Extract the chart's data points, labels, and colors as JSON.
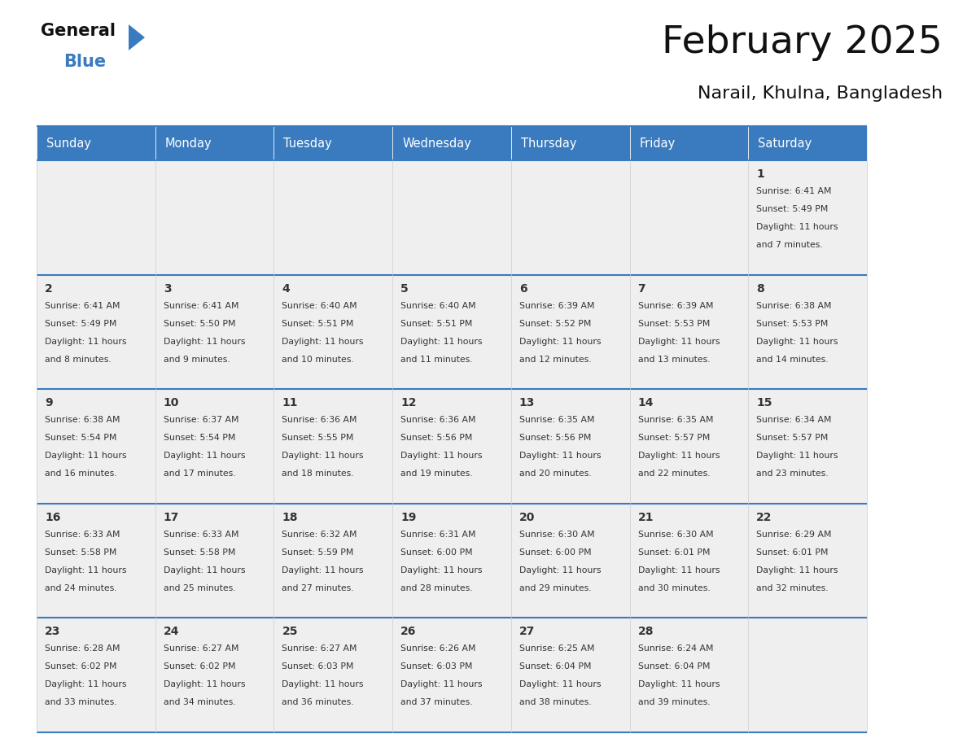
{
  "title": "February 2025",
  "subtitle": "Narail, Khulna, Bangladesh",
  "header_color": "#3a7bbf",
  "header_text_color": "#ffffff",
  "cell_bg_color": "#efefef",
  "border_color": "#3a7bbf",
  "text_color": "#333333",
  "day_names": [
    "Sunday",
    "Monday",
    "Tuesday",
    "Wednesday",
    "Thursday",
    "Friday",
    "Saturday"
  ],
  "days": [
    {
      "day": 1,
      "col": 6,
      "row": 0,
      "sunrise": "6:41 AM",
      "sunset": "5:49 PM",
      "daylight_hours": 11,
      "daylight_minutes": 7
    },
    {
      "day": 2,
      "col": 0,
      "row": 1,
      "sunrise": "6:41 AM",
      "sunset": "5:49 PM",
      "daylight_hours": 11,
      "daylight_minutes": 8
    },
    {
      "day": 3,
      "col": 1,
      "row": 1,
      "sunrise": "6:41 AM",
      "sunset": "5:50 PM",
      "daylight_hours": 11,
      "daylight_minutes": 9
    },
    {
      "day": 4,
      "col": 2,
      "row": 1,
      "sunrise": "6:40 AM",
      "sunset": "5:51 PM",
      "daylight_hours": 11,
      "daylight_minutes": 10
    },
    {
      "day": 5,
      "col": 3,
      "row": 1,
      "sunrise": "6:40 AM",
      "sunset": "5:51 PM",
      "daylight_hours": 11,
      "daylight_minutes": 11
    },
    {
      "day": 6,
      "col": 4,
      "row": 1,
      "sunrise": "6:39 AM",
      "sunset": "5:52 PM",
      "daylight_hours": 11,
      "daylight_minutes": 12
    },
    {
      "day": 7,
      "col": 5,
      "row": 1,
      "sunrise": "6:39 AM",
      "sunset": "5:53 PM",
      "daylight_hours": 11,
      "daylight_minutes": 13
    },
    {
      "day": 8,
      "col": 6,
      "row": 1,
      "sunrise": "6:38 AM",
      "sunset": "5:53 PM",
      "daylight_hours": 11,
      "daylight_minutes": 14
    },
    {
      "day": 9,
      "col": 0,
      "row": 2,
      "sunrise": "6:38 AM",
      "sunset": "5:54 PM",
      "daylight_hours": 11,
      "daylight_minutes": 16
    },
    {
      "day": 10,
      "col": 1,
      "row": 2,
      "sunrise": "6:37 AM",
      "sunset": "5:54 PM",
      "daylight_hours": 11,
      "daylight_minutes": 17
    },
    {
      "day": 11,
      "col": 2,
      "row": 2,
      "sunrise": "6:36 AM",
      "sunset": "5:55 PM",
      "daylight_hours": 11,
      "daylight_minutes": 18
    },
    {
      "day": 12,
      "col": 3,
      "row": 2,
      "sunrise": "6:36 AM",
      "sunset": "5:56 PM",
      "daylight_hours": 11,
      "daylight_minutes": 19
    },
    {
      "day": 13,
      "col": 4,
      "row": 2,
      "sunrise": "6:35 AM",
      "sunset": "5:56 PM",
      "daylight_hours": 11,
      "daylight_minutes": 20
    },
    {
      "day": 14,
      "col": 5,
      "row": 2,
      "sunrise": "6:35 AM",
      "sunset": "5:57 PM",
      "daylight_hours": 11,
      "daylight_minutes": 22
    },
    {
      "day": 15,
      "col": 6,
      "row": 2,
      "sunrise": "6:34 AM",
      "sunset": "5:57 PM",
      "daylight_hours": 11,
      "daylight_minutes": 23
    },
    {
      "day": 16,
      "col": 0,
      "row": 3,
      "sunrise": "6:33 AM",
      "sunset": "5:58 PM",
      "daylight_hours": 11,
      "daylight_minutes": 24
    },
    {
      "day": 17,
      "col": 1,
      "row": 3,
      "sunrise": "6:33 AM",
      "sunset": "5:58 PM",
      "daylight_hours": 11,
      "daylight_minutes": 25
    },
    {
      "day": 18,
      "col": 2,
      "row": 3,
      "sunrise": "6:32 AM",
      "sunset": "5:59 PM",
      "daylight_hours": 11,
      "daylight_minutes": 27
    },
    {
      "day": 19,
      "col": 3,
      "row": 3,
      "sunrise": "6:31 AM",
      "sunset": "6:00 PM",
      "daylight_hours": 11,
      "daylight_minutes": 28
    },
    {
      "day": 20,
      "col": 4,
      "row": 3,
      "sunrise": "6:30 AM",
      "sunset": "6:00 PM",
      "daylight_hours": 11,
      "daylight_minutes": 29
    },
    {
      "day": 21,
      "col": 5,
      "row": 3,
      "sunrise": "6:30 AM",
      "sunset": "6:01 PM",
      "daylight_hours": 11,
      "daylight_minutes": 30
    },
    {
      "day": 22,
      "col": 6,
      "row": 3,
      "sunrise": "6:29 AM",
      "sunset": "6:01 PM",
      "daylight_hours": 11,
      "daylight_minutes": 32
    },
    {
      "day": 23,
      "col": 0,
      "row": 4,
      "sunrise": "6:28 AM",
      "sunset": "6:02 PM",
      "daylight_hours": 11,
      "daylight_minutes": 33
    },
    {
      "day": 24,
      "col": 1,
      "row": 4,
      "sunrise": "6:27 AM",
      "sunset": "6:02 PM",
      "daylight_hours": 11,
      "daylight_minutes": 34
    },
    {
      "day": 25,
      "col": 2,
      "row": 4,
      "sunrise": "6:27 AM",
      "sunset": "6:03 PM",
      "daylight_hours": 11,
      "daylight_minutes": 36
    },
    {
      "day": 26,
      "col": 3,
      "row": 4,
      "sunrise": "6:26 AM",
      "sunset": "6:03 PM",
      "daylight_hours": 11,
      "daylight_minutes": 37
    },
    {
      "day": 27,
      "col": 4,
      "row": 4,
      "sunrise": "6:25 AM",
      "sunset": "6:04 PM",
      "daylight_hours": 11,
      "daylight_minutes": 38
    },
    {
      "day": 28,
      "col": 5,
      "row": 4,
      "sunrise": "6:24 AM",
      "sunset": "6:04 PM",
      "daylight_hours": 11,
      "daylight_minutes": 39
    }
  ],
  "num_rows": 5,
  "logo_color_general": "#111111",
  "logo_color_blue": "#3a7bbf",
  "logo_triangle_color": "#3a7bbf",
  "fig_width": 11.88,
  "fig_height": 9.18,
  "dpi": 100
}
